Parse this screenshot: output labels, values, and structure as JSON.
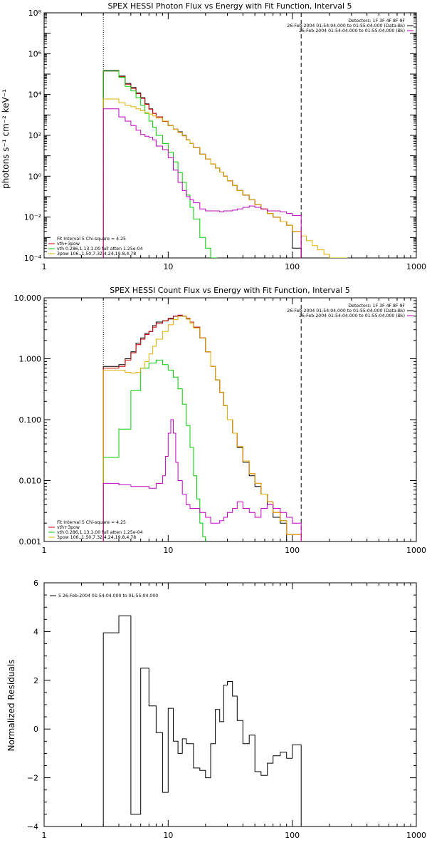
{
  "chart_data": [
    {
      "type": "line",
      "title": "SPEX HESSI Photon Flux vs Energy with Fit Function, Interval 5",
      "ylabel": "photons s⁻¹ cm⁻² keV⁻¹",
      "xlabel": "",
      "xscale": "log",
      "yscale": "log",
      "xlim": [
        1,
        1000
      ],
      "ylim": [
        0.0001,
        100000000
      ],
      "x_ticks": [
        "1",
        "10",
        "100",
        "1000"
      ],
      "y_ticks": [
        "10⁻⁴",
        "10⁻²",
        "10⁰",
        "10²",
        "10⁴",
        "10⁶",
        "10⁸"
      ],
      "vlines": [
        3.0,
        118.0
      ],
      "legend_tr": [
        {
          "text": "Detectors: 1F 3F 4F 8F 9F",
          "color": ""
        },
        {
          "text": "26-Feb-2004 01:54:04.000 to 01:55:04.000 (Data-Bk)",
          "color": "#000000"
        },
        {
          "text": "26-Feb-2004 01:54:04.000 to 01:55:04.000 (Bk)",
          "color": "#c000c0"
        }
      ],
      "legend_bl": [
        {
          "text": "Fit Interval 5   Chi-square = 4.25",
          "color": ""
        },
        {
          "text": "vth+3pow",
          "color": "#cc0000"
        },
        {
          "text": "vth 0.286,1.13,1.00  full atten 1.25e-04",
          "color": "#00cc00"
        },
        {
          "text": "3pow 106.,1.50,7.32,4.24,19.8,4.78",
          "color": "#e0b000"
        }
      ],
      "series": [
        {
          "color": "#000000",
          "x": [
            3.0,
            3.5,
            4.0,
            4.5,
            5.0,
            5.5,
            6.0,
            6.5,
            7.0,
            7.5,
            8.0,
            9.0,
            10.0,
            11.0,
            12.0,
            13.0,
            14.0,
            15.0,
            16.0,
            18.0,
            20.0,
            22.0,
            24.0,
            26.0,
            28.0,
            30.0,
            33.0,
            36.0,
            40.0,
            45.0,
            50.0,
            56.0,
            63.0,
            70.0,
            80.0,
            90.0,
            100.0,
            118.0
          ],
          "y": [
            150000,
            150000,
            80000,
            35000,
            22000,
            12000,
            7000,
            3500,
            2000,
            1200,
            800,
            500,
            300,
            200,
            150,
            100,
            60,
            40,
            25,
            12,
            7,
            4,
            2.5,
            1.6,
            1.0,
            0.6,
            0.35,
            0.2,
            0.12,
            0.07,
            0.04,
            0.025,
            0.015,
            0.01,
            0.006,
            0.004,
            0.0003,
            0.0003
          ]
        },
        {
          "color": "#cc0000",
          "x": [
            3.0,
            3.5,
            4.0,
            4.5,
            5.0,
            5.5,
            6.0,
            6.5,
            7.0,
            7.5,
            8.0,
            9.0,
            10.0,
            11.0,
            12.0,
            13.0,
            14.0,
            15.0,
            16.0,
            18.0,
            20.0,
            22.0,
            24.0,
            26.0,
            28.0,
            30.0,
            33.0,
            36.0,
            40.0,
            45.0,
            50.0,
            56.0,
            63.0,
            70.0,
            80.0,
            90.0,
            100.0,
            118.0
          ],
          "y": [
            140000,
            140000,
            75000,
            32000,
            20000,
            11000,
            6500,
            3300,
            1900,
            1200,
            800,
            480,
            300,
            200,
            140,
            95,
            60,
            40,
            25,
            12,
            7,
            4,
            2.5,
            1.6,
            1.0,
            0.6,
            0.35,
            0.2,
            0.12,
            0.07,
            0.04,
            0.025,
            0.015,
            0.01,
            0.006,
            0.004,
            0.002,
            0.002
          ]
        },
        {
          "color": "#00cc00",
          "x": [
            3.0,
            3.5,
            4.0,
            4.5,
            5.0,
            5.5,
            6.0,
            6.5,
            7.0,
            7.5,
            8.0,
            9.0,
            10.0,
            11.0,
            12.0,
            13.0,
            14.0,
            15.0,
            16.0,
            18.0,
            20.0,
            22.0,
            24.0,
            25.0
          ],
          "y": [
            140000,
            140000,
            70000,
            25000,
            15000,
            7000,
            3000,
            1200,
            500,
            250,
            100,
            40,
            15,
            5,
            1.5,
            0.5,
            0.12,
            0.03,
            0.008,
            0.001,
            0.0003,
            0.0001,
            5e-05,
            5e-05
          ]
        },
        {
          "color": "#e0b000",
          "x": [
            3.0,
            3.5,
            4.0,
            4.5,
            5.0,
            5.5,
            6.0,
            6.5,
            7.0,
            7.5,
            8.0,
            9.0,
            10.0,
            11.0,
            12.0,
            13.0,
            14.0,
            15.0,
            16.0,
            18.0,
            20.0,
            22.0,
            24.0,
            26.0,
            28.0,
            30.0,
            33.0,
            36.0,
            40.0,
            45.0,
            50.0,
            56.0,
            63.0,
            70.0,
            80.0,
            90.0,
            100.0,
            118.0,
            130.0,
            145.0,
            160.0,
            180.0,
            200.0,
            225.0,
            250.0,
            280.0
          ],
          "y": [
            6000,
            6000,
            4000,
            3000,
            2500,
            2000,
            1600,
            1300,
            1100,
            900,
            700,
            500,
            300,
            200,
            140,
            95,
            60,
            40,
            25,
            12,
            7,
            4,
            2.5,
            1.6,
            1.0,
            0.6,
            0.35,
            0.2,
            0.12,
            0.07,
            0.04,
            0.025,
            0.015,
            0.01,
            0.006,
            0.004,
            0.002,
            0.0012,
            0.0007,
            0.0004,
            0.00025,
            0.00015,
            0.0001,
            6e-05,
            4e-05,
            4e-05
          ]
        },
        {
          "color": "#c000c0",
          "x": [
            3.0,
            3.5,
            4.0,
            4.5,
            5.0,
            5.5,
            6.0,
            6.5,
            7.0,
            7.5,
            8.0,
            9.0,
            10.0,
            11.0,
            12.0,
            13.0,
            14.0,
            15.0,
            16.0,
            18.0,
            20.0,
            22.0,
            24.0,
            26.0,
            28.0,
            30.0,
            33.0,
            36.0,
            40.0,
            45.0,
            50.0,
            56.0,
            63.0,
            70.0,
            80.0,
            90.0,
            100.0,
            118.0
          ],
          "y": [
            2000,
            2000,
            800,
            500,
            300,
            180,
            110,
            90,
            80,
            60,
            30,
            20,
            8,
            2,
            0.5,
            0.2,
            0.1,
            0.07,
            0.05,
            0.025,
            0.02,
            0.02,
            0.02,
            0.018,
            0.02,
            0.02,
            0.022,
            0.025,
            0.03,
            0.035,
            0.03,
            0.025,
            0.02,
            0.02,
            0.018,
            0.015,
            0.012,
            0.0001
          ]
        }
      ]
    },
    {
      "type": "line",
      "title": "SPEX HESSI Count Flux vs Energy with Fit Function, Interval 5",
      "ylabel": "",
      "xlabel": "",
      "xscale": "log",
      "yscale": "log",
      "xlim": [
        1,
        1000
      ],
      "ylim": [
        0.001,
        10
      ],
      "x_ticks": [
        "1",
        "10",
        "100",
        "1000"
      ],
      "y_ticks": [
        "0.001",
        "0.010",
        "0.100",
        "1.000",
        "10.000"
      ],
      "vlines": [
        3.0,
        118.0
      ],
      "legend_tr": [
        {
          "text": "Detectors: 1F 3F 4F 8F 9F",
          "color": ""
        },
        {
          "text": "26-Feb-2004 01:54:04.000 to 01:55:04.000 (Data-Bk)",
          "color": "#000000"
        },
        {
          "text": "26-Feb-2004 01:54:04.000 to 01:55:04.000 (Bk)",
          "color": "#c000c0"
        }
      ],
      "legend_bl": [
        {
          "text": "Fit Interval 5   Chi-square = 4.25",
          "color": ""
        },
        {
          "text": "vth+3pow",
          "color": "#cc0000"
        },
        {
          "text": "vth 0.286,1.13,1.00  full atten 1.25e-04",
          "color": "#00cc00"
        },
        {
          "text": "3pow 106.,1.50,7.32,4.24,19.8,4.78",
          "color": "#e0b000"
        }
      ],
      "series": [
        {
          "color": "#000000",
          "x": [
            3.0,
            4.0,
            4.5,
            5.0,
            5.5,
            6.0,
            6.5,
            7.0,
            7.5,
            8.0,
            9.0,
            10.0,
            11.0,
            12.0,
            13.0,
            14.0,
            15.0,
            16.0,
            18.0,
            20.0,
            22.0,
            24.0,
            26.0,
            28.0,
            30.0,
            33.0,
            36.0,
            40.0,
            45.0,
            50.0,
            56.0,
            63.0,
            70.0,
            80.0,
            90.0,
            100.0,
            118.0
          ],
          "y": [
            0.75,
            0.8,
            1.0,
            1.3,
            1.8,
            2.2,
            2.6,
            2.8,
            3.5,
            4.0,
            4.2,
            4.5,
            5.0,
            5.1,
            5.0,
            4.5,
            4.0,
            3.3,
            2.2,
            1.3,
            0.75,
            0.45,
            0.28,
            0.17,
            0.1,
            0.06,
            0.035,
            0.02,
            0.012,
            0.008,
            0.006,
            0.004,
            0.0025,
            0.002,
            0.001,
            0.001,
            0.001
          ]
        },
        {
          "color": "#cc0000",
          "x": [
            3.0,
            4.0,
            4.5,
            5.0,
            5.5,
            6.0,
            6.5,
            7.0,
            7.5,
            8.0,
            9.0,
            10.0,
            11.0,
            12.0,
            13.0,
            14.0,
            15.0,
            16.0,
            18.0,
            20.0,
            22.0,
            24.0,
            26.0,
            28.0,
            30.0,
            33.0,
            36.0,
            40.0,
            45.0,
            50.0,
            56.0,
            63.0,
            70.0,
            80.0,
            90.0,
            100.0,
            118.0
          ],
          "y": [
            0.7,
            0.75,
            0.95,
            1.25,
            1.7,
            2.1,
            2.5,
            2.8,
            3.3,
            3.8,
            4.2,
            4.6,
            5.0,
            5.2,
            5.0,
            4.6,
            4.0,
            3.3,
            2.2,
            1.3,
            0.75,
            0.45,
            0.28,
            0.17,
            0.1,
            0.06,
            0.036,
            0.021,
            0.013,
            0.009,
            0.006,
            0.0045,
            0.003,
            0.0022,
            0.0013,
            0.0013,
            0.0013
          ]
        },
        {
          "color": "#00cc00",
          "x": [
            3.0,
            4.0,
            5.0,
            6.0,
            7.0,
            8.0,
            9.0,
            10.0,
            11.0,
            12.0,
            13.0,
            14.0,
            15.0,
            16.0,
            17.0,
            18.0,
            19.0,
            20.0
          ],
          "y": [
            0.024,
            0.07,
            0.3,
            0.7,
            0.85,
            0.95,
            0.8,
            0.65,
            0.5,
            0.32,
            0.18,
            0.08,
            0.035,
            0.012,
            0.005,
            0.002,
            0.0012,
            0.0008
          ]
        },
        {
          "color": "#e0b000",
          "x": [
            3.0,
            4.0,
            4.5,
            5.0,
            5.5,
            6.0,
            6.5,
            7.0,
            7.5,
            8.0,
            9.0,
            10.0,
            11.0,
            12.0,
            13.0,
            14.0,
            15.0,
            16.0,
            18.0,
            20.0,
            22.0,
            24.0,
            26.0,
            28.0,
            30.0,
            33.0,
            36.0,
            40.0,
            45.0,
            50.0,
            56.0,
            63.0,
            70.0,
            80.0,
            90.0,
            100.0,
            118.0
          ],
          "y": [
            0.65,
            0.65,
            0.6,
            0.58,
            0.6,
            0.7,
            0.9,
            1.2,
            1.6,
            2.1,
            2.8,
            3.6,
            4.4,
            5.0,
            5.0,
            4.5,
            3.8,
            3.2,
            2.2,
            1.3,
            0.75,
            0.45,
            0.28,
            0.17,
            0.1,
            0.06,
            0.036,
            0.021,
            0.013,
            0.009,
            0.006,
            0.0045,
            0.003,
            0.0022,
            0.0013,
            0.0013,
            0.0013
          ]
        },
        {
          "color": "#c000c0",
          "x": [
            3.0,
            4.0,
            5.0,
            6.0,
            7.0,
            8.0,
            9.0,
            9.5,
            10.0,
            10.5,
            11.0,
            11.5,
            12.0,
            13.0,
            14.0,
            15.0,
            16.0,
            18.0,
            20.0,
            22.0,
            24.0,
            26.0,
            28.0,
            30.0,
            33.0,
            36.0,
            40.0,
            45.0,
            50.0,
            56.0,
            63.0,
            70.0,
            80.0,
            90.0,
            100.0,
            118.0
          ],
          "y": [
            0.009,
            0.0085,
            0.008,
            0.008,
            0.0075,
            0.009,
            0.012,
            0.025,
            0.06,
            0.1,
            0.06,
            0.02,
            0.01,
            0.006,
            0.004,
            0.0035,
            0.0035,
            0.003,
            0.0025,
            0.002,
            0.002,
            0.0022,
            0.0025,
            0.003,
            0.0035,
            0.0045,
            0.0035,
            0.003,
            0.0025,
            0.0035,
            0.004,
            0.0035,
            0.003,
            0.0025,
            0.002,
            0.001
          ]
        }
      ]
    },
    {
      "type": "line",
      "title": "",
      "ylabel": "Normalized Residuals",
      "xlabel": "",
      "xscale": "log",
      "yscale": "linear",
      "xlim": [
        1,
        1000
      ],
      "ylim": [
        -4,
        6
      ],
      "x_ticks": [
        "1",
        "10",
        "100",
        "1000"
      ],
      "y_ticks": [
        "−4",
        "−2",
        "0",
        "2",
        "4",
        "6"
      ],
      "legend_tl": [
        {
          "text": "5  26-Feb-2004 01:54:04.000 to 01:55:04.000",
          "color": "#000000"
        }
      ],
      "series": [
        {
          "color": "#000000",
          "x": [
            3.0,
            4.0,
            5.0,
            6.0,
            7.0,
            8.0,
            9.0,
            10.0,
            11.0,
            12.0,
            13.0,
            14.0,
            15.0,
            16.0,
            18.0,
            20.0,
            22.0,
            24.0,
            26.0,
            28.0,
            30.0,
            33.0,
            36.0,
            40.0,
            45.0,
            50.0,
            56.0,
            63.0,
            70.0,
            80.0,
            90.0,
            100.0,
            118.0
          ],
          "y": [
            3.95,
            4.65,
            -3.5,
            2.5,
            0.95,
            -0.15,
            -2.6,
            0.85,
            -0.5,
            -1.0,
            -0.4,
            -0.6,
            -0.6,
            -1.6,
            -1.7,
            -2.0,
            -0.6,
            0.8,
            0.3,
            1.8,
            1.95,
            1.35,
            0.35,
            -0.6,
            -0.25,
            -1.75,
            -1.9,
            -1.4,
            -1.1,
            -0.95,
            -1.2,
            -0.65,
            -0.65
          ]
        }
      ]
    }
  ]
}
